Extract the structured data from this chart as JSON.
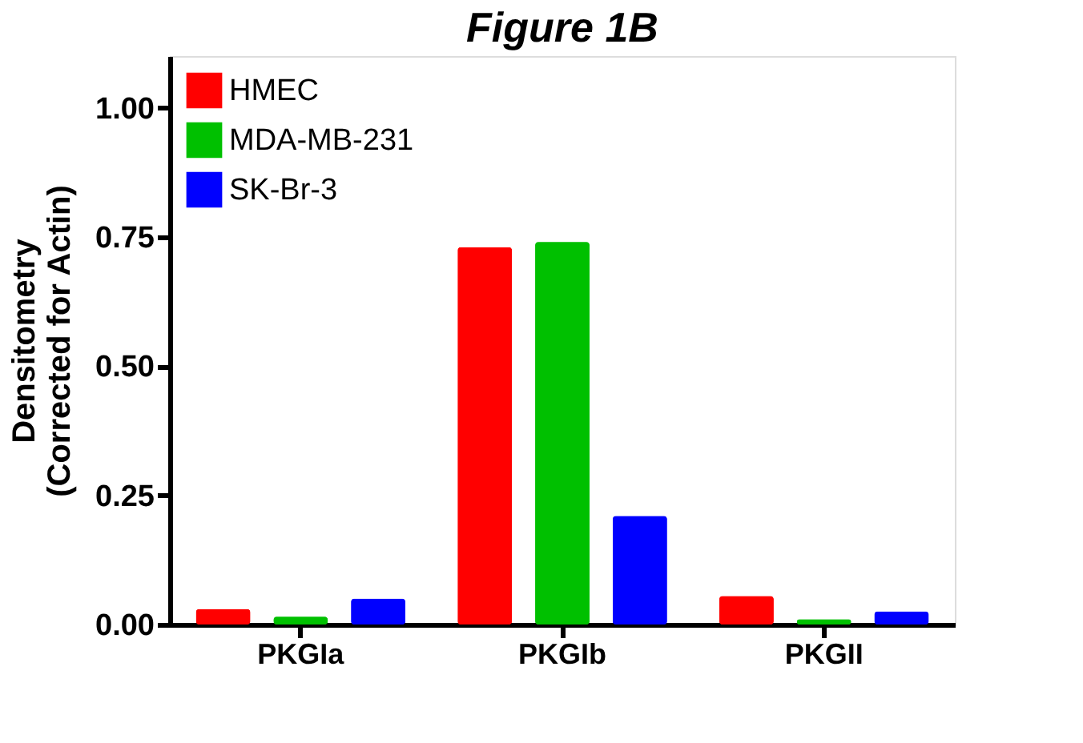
{
  "chart_data": {
    "type": "bar",
    "title": "Figure 1B",
    "ylabel": "Densitometry\n(Corrected for Actin)",
    "categories": [
      "PKGIa",
      "PKGIb",
      "PKGII"
    ],
    "series": [
      {
        "name": "HMEC",
        "color": "#ff0000",
        "values": [
          0.03,
          0.73,
          0.055
        ]
      },
      {
        "name": "MDA-MB-231",
        "color": "#00c000",
        "values": [
          0.015,
          0.74,
          0.01
        ]
      },
      {
        "name": "SK-Br-3",
        "color": "#0000ff",
        "values": [
          0.05,
          0.21,
          0.025
        ]
      }
    ],
    "ylim": [
      0,
      1.1
    ],
    "yticks": [
      {
        "value": 0,
        "label": "0.00"
      },
      {
        "value": 0.25,
        "label": "0.25"
      },
      {
        "value": 0.5,
        "label": "0.50"
      },
      {
        "value": 0.75,
        "label": "0.75"
      },
      {
        "value": 1,
        "label": "1.00"
      }
    ],
    "grid": false,
    "legend": "top left"
  }
}
